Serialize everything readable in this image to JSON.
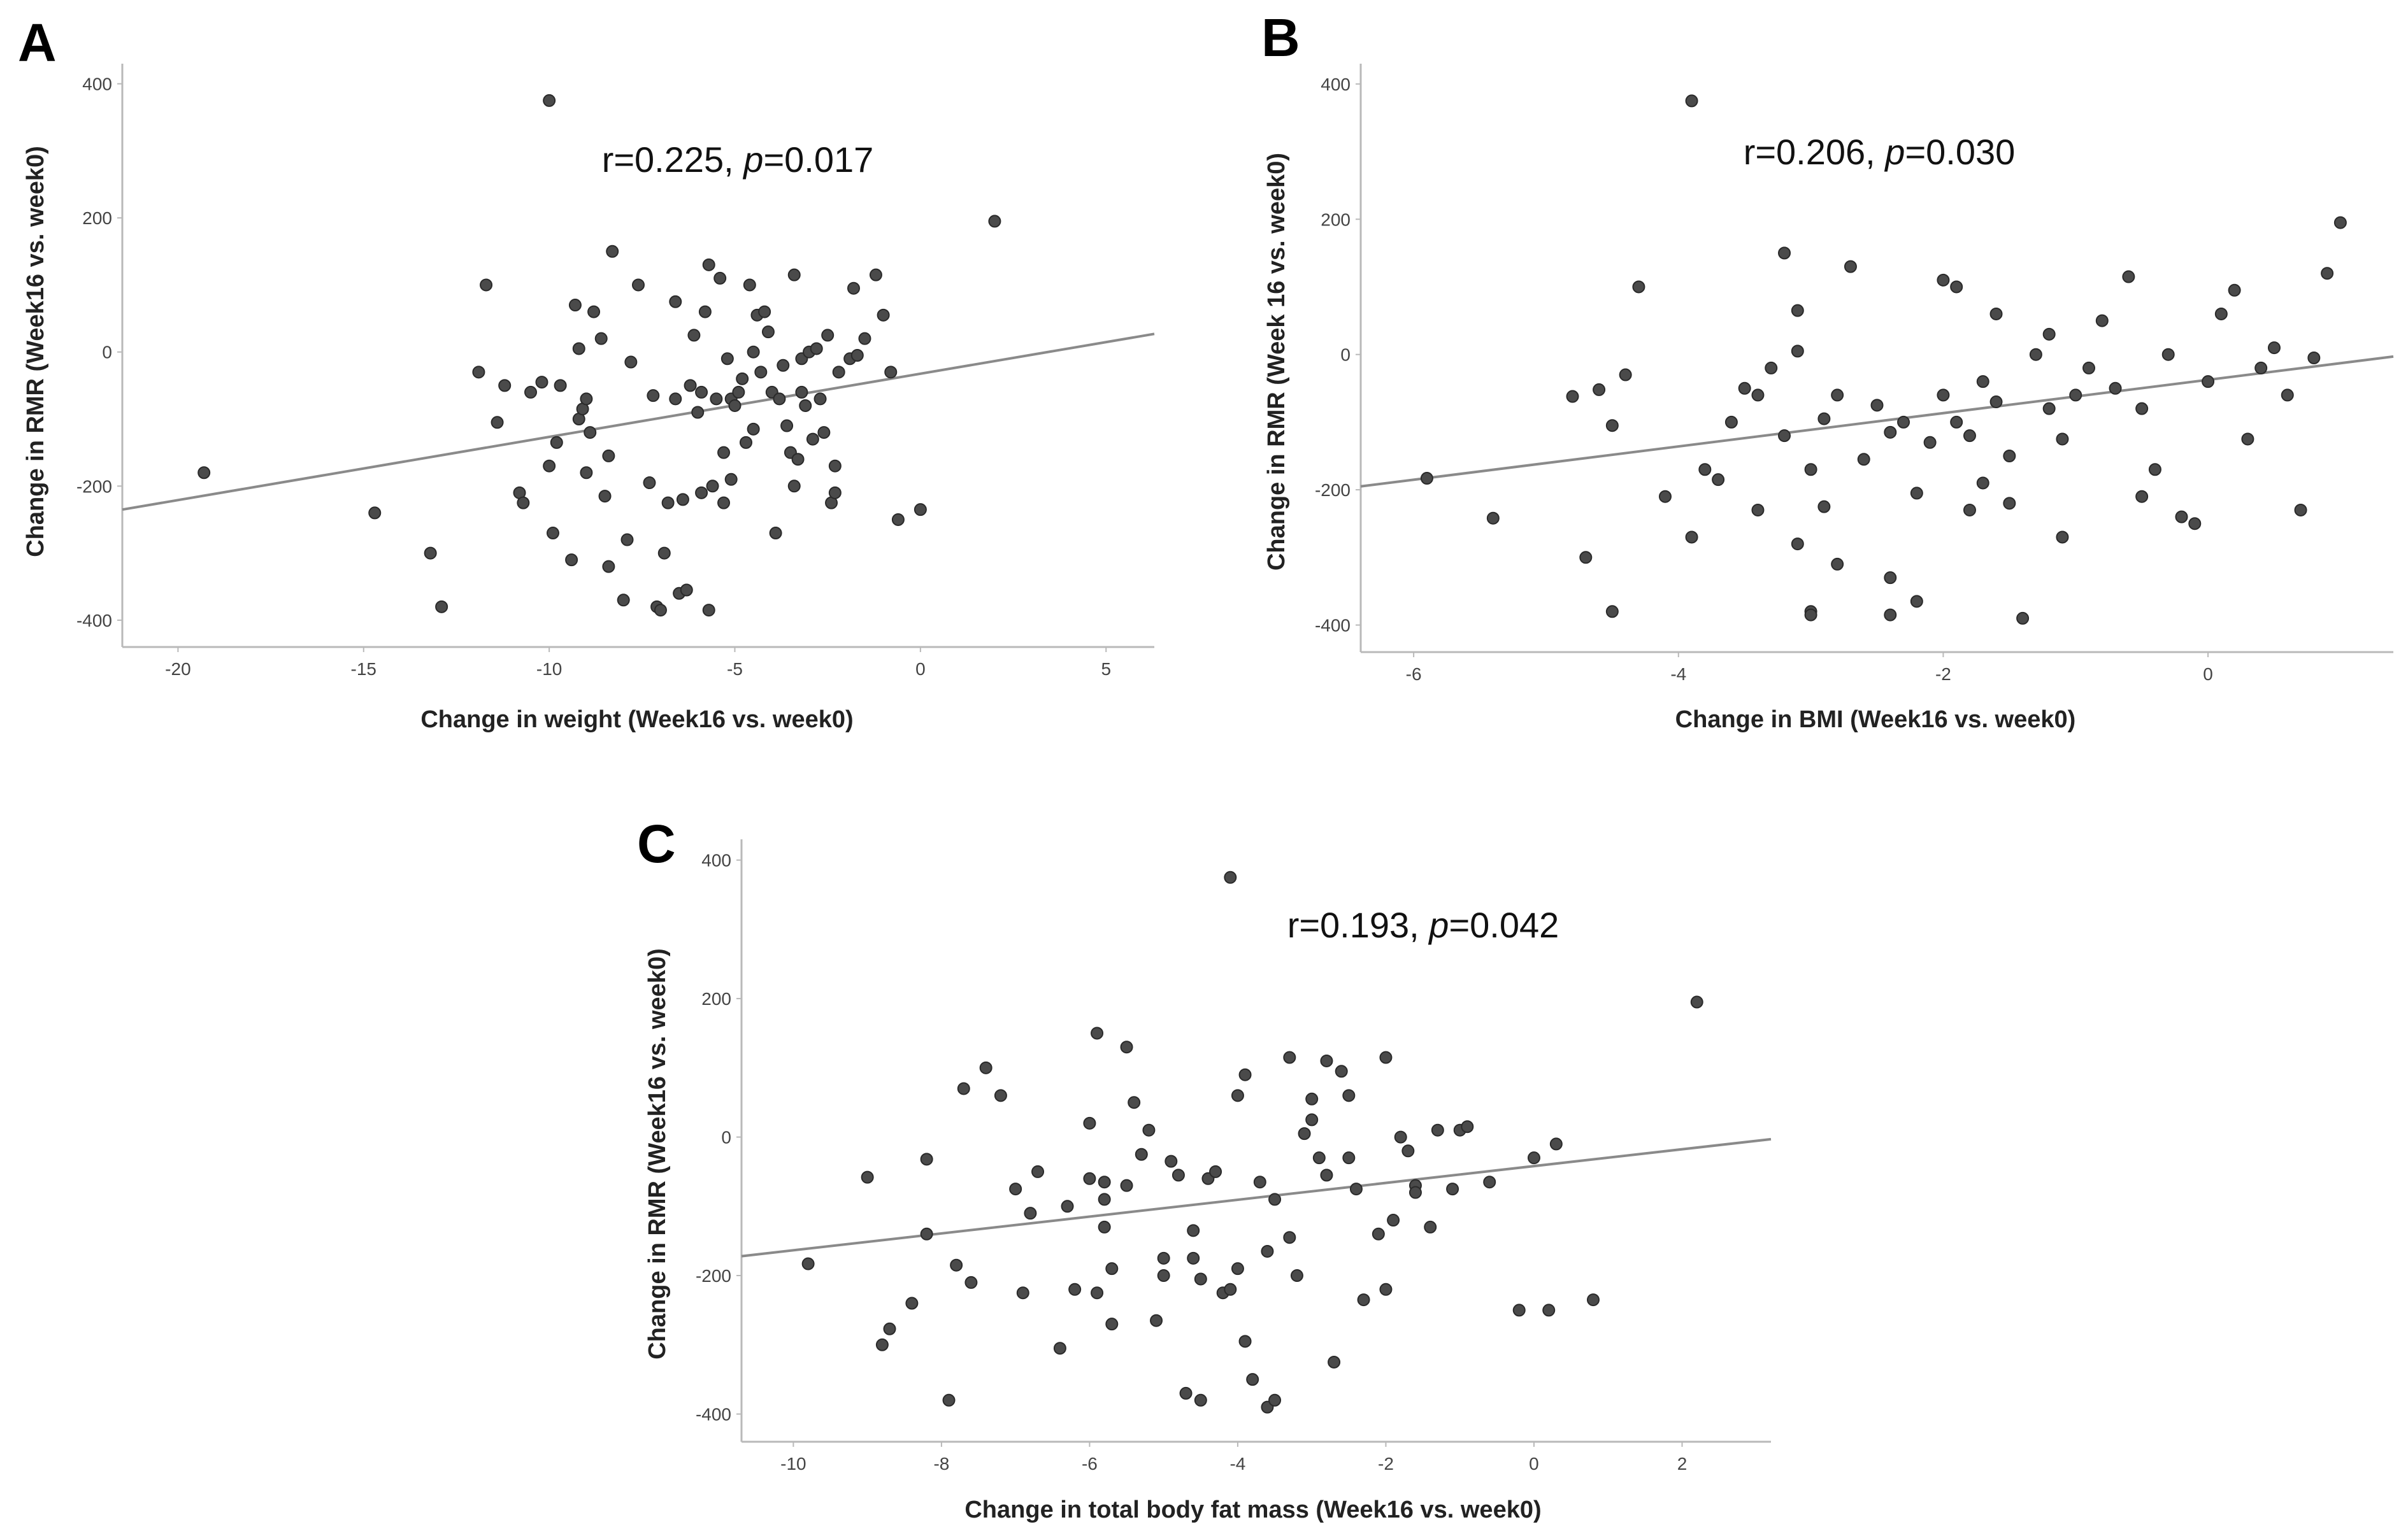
{
  "chart_data": [
    {
      "panel": "A",
      "type": "scatter",
      "xlabel": "Change in weight (Week16 vs. week0)",
      "ylabel": "Change in RMR (Week16 vs. week0)",
      "annotation": {
        "r": "r=0.225,",
        "p_label": "p",
        "p_value": "=0.017"
      },
      "xlim": [
        -21.5,
        6.3
      ],
      "ylim": [
        -440,
        430
      ],
      "xticks": [
        -20,
        -15,
        -10,
        -5,
        0,
        5
      ],
      "yticks": [
        -400,
        -200,
        0,
        200,
        400
      ],
      "fit_line": {
        "x": [
          -21.5,
          6.3
        ],
        "y": [
          -235,
          27
        ]
      },
      "points": [
        [
          -19.3,
          -180
        ],
        [
          -14.7,
          -240
        ],
        [
          -13.2,
          -300
        ],
        [
          -12.9,
          -380
        ],
        [
          -11.9,
          -30
        ],
        [
          -11.7,
          100
        ],
        [
          -11.4,
          -105
        ],
        [
          -11.2,
          -50
        ],
        [
          -10.8,
          -210
        ],
        [
          -10.7,
          -225
        ],
        [
          -10.5,
          -60
        ],
        [
          -10.2,
          -45
        ],
        [
          -10.0,
          375
        ],
        [
          -10.0,
          -170
        ],
        [
          -9.9,
          -270
        ],
        [
          -9.8,
          -135
        ],
        [
          -9.7,
          -50
        ],
        [
          -9.4,
          -310
        ],
        [
          -9.3,
          70
        ],
        [
          -9.2,
          -100
        ],
        [
          -9.2,
          5
        ],
        [
          -9.1,
          -85
        ],
        [
          -9.0,
          -70
        ],
        [
          -9.0,
          -180
        ],
        [
          -8.9,
          -120
        ],
        [
          -8.8,
          60
        ],
        [
          -8.6,
          20
        ],
        [
          -8.5,
          -215
        ],
        [
          -8.4,
          -155
        ],
        [
          -8.4,
          -320
        ],
        [
          -8.3,
          150
        ],
        [
          -8.0,
          -370
        ],
        [
          -7.9,
          -280
        ],
        [
          -7.8,
          -15
        ],
        [
          -7.6,
          100
        ],
        [
          -7.3,
          -195
        ],
        [
          -7.2,
          -65
        ],
        [
          -7.1,
          -380
        ],
        [
          -7.0,
          -385
        ],
        [
          -6.9,
          -300
        ],
        [
          -6.8,
          -225
        ],
        [
          -6.6,
          75
        ],
        [
          -6.6,
          -70
        ],
        [
          -6.5,
          -360
        ],
        [
          -6.4,
          -220
        ],
        [
          -6.3,
          -355
        ],
        [
          -6.2,
          -50
        ],
        [
          -6.1,
          25
        ],
        [
          -6.0,
          -90
        ],
        [
          -5.9,
          -210
        ],
        [
          -5.9,
          -60
        ],
        [
          -5.8,
          60
        ],
        [
          -5.7,
          -385
        ],
        [
          -5.7,
          130
        ],
        [
          -5.6,
          -200
        ],
        [
          -5.5,
          -70
        ],
        [
          -5.4,
          110
        ],
        [
          -5.3,
          -150
        ],
        [
          -5.3,
          -225
        ],
        [
          -5.2,
          -10
        ],
        [
          -5.1,
          -70
        ],
        [
          -5.1,
          -190
        ],
        [
          -5.0,
          -80
        ],
        [
          -4.9,
          -60
        ],
        [
          -4.8,
          -40
        ],
        [
          -4.7,
          -135
        ],
        [
          -4.6,
          100
        ],
        [
          -4.5,
          -115
        ],
        [
          -4.5,
          0
        ],
        [
          -4.4,
          55
        ],
        [
          -4.3,
          -30
        ],
        [
          -4.2,
          60
        ],
        [
          -4.1,
          30
        ],
        [
          -4.0,
          -60
        ],
        [
          -3.9,
          -270
        ],
        [
          -3.8,
          -70
        ],
        [
          -3.7,
          -20
        ],
        [
          -3.6,
          -110
        ],
        [
          -3.5,
          -150
        ],
        [
          -3.4,
          -200
        ],
        [
          -3.4,
          115
        ],
        [
          -3.3,
          -160
        ],
        [
          -3.2,
          -60
        ],
        [
          -3.2,
          -10
        ],
        [
          -3.1,
          -80
        ],
        [
          -3.0,
          0
        ],
        [
          -2.9,
          -130
        ],
        [
          -2.8,
          5
        ],
        [
          -2.7,
          -70
        ],
        [
          -2.6,
          -120
        ],
        [
          -2.5,
          25
        ],
        [
          -2.4,
          -225
        ],
        [
          -2.3,
          -210
        ],
        [
          -2.3,
          -170
        ],
        [
          -2.2,
          -30
        ],
        [
          -1.9,
          -10
        ],
        [
          -1.8,
          95
        ],
        [
          -1.7,
          -5
        ],
        [
          -1.5,
          20
        ],
        [
          -1.2,
          115
        ],
        [
          -1.0,
          55
        ],
        [
          -0.8,
          -30
        ],
        [
          -0.6,
          -250
        ],
        [
          0.0,
          -235
        ],
        [
          2.0,
          195
        ]
      ]
    },
    {
      "panel": "B",
      "type": "scatter",
      "xlabel": "Change in BMI (Week16 vs. week0)",
      "ylabel": "Change in RMR (Week 16 vs. week0)",
      "annotation": {
        "r": "r=0.206,",
        "p_label": "p",
        "p_value": "=0.030"
      },
      "xlim": [
        -6.4,
        1.4
      ],
      "ylim": [
        -440,
        430
      ],
      "xticks": [
        -6,
        -4,
        -2,
        0
      ],
      "yticks": [
        -400,
        -200,
        0,
        200,
        400
      ],
      "fit_line": {
        "x": [
          -6.4,
          1.4
        ],
        "y": [
          -195,
          -3
        ]
      },
      "points": [
        [
          -5.9,
          -183
        ],
        [
          -5.4,
          -242
        ],
        [
          -4.8,
          -62
        ],
        [
          -4.7,
          -300
        ],
        [
          -4.6,
          -52
        ],
        [
          -4.5,
          -380
        ],
        [
          -4.5,
          -105
        ],
        [
          -4.4,
          -30
        ],
        [
          -4.3,
          100
        ],
        [
          -4.1,
          -210
        ],
        [
          -3.9,
          375
        ],
        [
          -3.9,
          -270
        ],
        [
          -3.8,
          -170
        ],
        [
          -3.7,
          -185
        ],
        [
          -3.6,
          -100
        ],
        [
          -3.5,
          -50
        ],
        [
          -3.4,
          -60
        ],
        [
          -3.4,
          -230
        ],
        [
          -3.3,
          -20
        ],
        [
          -3.2,
          150
        ],
        [
          -3.2,
          -120
        ],
        [
          -3.1,
          5
        ],
        [
          -3.1,
          -280
        ],
        [
          -3.1,
          65
        ],
        [
          -3.0,
          -170
        ],
        [
          -3.0,
          -380
        ],
        [
          -3.0,
          -385
        ],
        [
          -2.9,
          -225
        ],
        [
          -2.9,
          -95
        ],
        [
          -2.8,
          -310
        ],
        [
          -2.8,
          -60
        ],
        [
          -2.7,
          130
        ],
        [
          -2.6,
          -155
        ],
        [
          -2.5,
          -75
        ],
        [
          -2.4,
          -385
        ],
        [
          -2.4,
          -330
        ],
        [
          -2.4,
          -115
        ],
        [
          -2.3,
          -100
        ],
        [
          -2.2,
          -205
        ],
        [
          -2.2,
          -365
        ],
        [
          -2.1,
          -130
        ],
        [
          -2.0,
          -60
        ],
        [
          -2.0,
          110
        ],
        [
          -1.9,
          -100
        ],
        [
          -1.9,
          100
        ],
        [
          -1.8,
          -120
        ],
        [
          -1.8,
          -230
        ],
        [
          -1.7,
          -40
        ],
        [
          -1.7,
          -190
        ],
        [
          -1.6,
          -70
        ],
        [
          -1.6,
          60
        ],
        [
          -1.5,
          -150
        ],
        [
          -1.5,
          -220
        ],
        [
          -1.4,
          -390
        ],
        [
          -1.3,
          0
        ],
        [
          -1.2,
          -80
        ],
        [
          -1.2,
          30
        ],
        [
          -1.1,
          -270
        ],
        [
          -1.1,
          -125
        ],
        [
          -1.0,
          -60
        ],
        [
          -0.9,
          -20
        ],
        [
          -0.8,
          50
        ],
        [
          -0.7,
          -50
        ],
        [
          -0.6,
          115
        ],
        [
          -0.5,
          -80
        ],
        [
          -0.5,
          -210
        ],
        [
          -0.4,
          -170
        ],
        [
          -0.3,
          0
        ],
        [
          -0.2,
          -240
        ],
        [
          -0.1,
          -250
        ],
        [
          0.0,
          -40
        ],
        [
          0.1,
          60
        ],
        [
          0.2,
          95
        ],
        [
          0.3,
          -125
        ],
        [
          0.4,
          -20
        ],
        [
          0.5,
          10
        ],
        [
          0.6,
          -60
        ],
        [
          0.7,
          -230
        ],
        [
          0.8,
          -5
        ],
        [
          0.9,
          120
        ],
        [
          1.0,
          195
        ]
      ]
    },
    {
      "panel": "C",
      "type": "scatter",
      "xlabel": "Change in total body fat mass (Week16 vs. week0)",
      "ylabel": "Change in RMR (Week16 vs. week0)",
      "annotation": {
        "r": "r=0.193,",
        "p_label": "p",
        "p_value": "=0.042"
      },
      "xlim": [
        -10.7,
        3.2
      ],
      "ylim": [
        -440,
        430
      ],
      "xticks": [
        -10,
        -8,
        -6,
        -4,
        -2,
        0,
        2
      ],
      "yticks": [
        -400,
        -200,
        0,
        200,
        400
      ],
      "fit_line": {
        "x": [
          -10.7,
          3.2
        ],
        "y": [
          -172,
          -3
        ]
      },
      "points": [
        [
          -9.8,
          -183
        ],
        [
          -9.0,
          -58
        ],
        [
          -8.8,
          -300
        ],
        [
          -8.7,
          -277
        ],
        [
          -8.4,
          -240
        ],
        [
          -8.2,
          -32
        ],
        [
          -8.2,
          -140
        ],
        [
          -7.9,
          -380
        ],
        [
          -7.8,
          -185
        ],
        [
          -7.7,
          70
        ],
        [
          -7.6,
          -210
        ],
        [
          -7.4,
          100
        ],
        [
          -7.2,
          60
        ],
        [
          -7.0,
          -75
        ],
        [
          -6.9,
          -225
        ],
        [
          -6.8,
          -110
        ],
        [
          -6.7,
          -50
        ],
        [
          -6.4,
          -305
        ],
        [
          -6.3,
          -100
        ],
        [
          -6.2,
          -220
        ],
        [
          -6.0,
          20
        ],
        [
          -6.0,
          -60
        ],
        [
          -5.9,
          150
        ],
        [
          -5.9,
          -225
        ],
        [
          -5.8,
          -130
        ],
        [
          -5.8,
          -90
        ],
        [
          -5.8,
          -65
        ],
        [
          -5.7,
          -190
        ],
        [
          -5.7,
          -270
        ],
        [
          -5.5,
          130
        ],
        [
          -5.5,
          -70
        ],
        [
          -5.4,
          50
        ],
        [
          -5.3,
          -25
        ],
        [
          -5.2,
          10
        ],
        [
          -5.1,
          -265
        ],
        [
          -5.0,
          -175
        ],
        [
          -5.0,
          -200
        ],
        [
          -4.9,
          -35
        ],
        [
          -4.8,
          -55
        ],
        [
          -4.7,
          -370
        ],
        [
          -4.6,
          -135
        ],
        [
          -4.6,
          -175
        ],
        [
          -4.5,
          -380
        ],
        [
          -4.5,
          -205
        ],
        [
          -4.4,
          -60
        ],
        [
          -4.3,
          -50
        ],
        [
          -4.2,
          -225
        ],
        [
          -4.1,
          -220
        ],
        [
          -4.1,
          375
        ],
        [
          -4.0,
          60
        ],
        [
          -4.0,
          -190
        ],
        [
          -3.9,
          90
        ],
        [
          -3.9,
          -295
        ],
        [
          -3.8,
          -350
        ],
        [
          -3.7,
          -65
        ],
        [
          -3.6,
          -390
        ],
        [
          -3.6,
          -165
        ],
        [
          -3.5,
          -380
        ],
        [
          -3.5,
          -90
        ],
        [
          -3.3,
          -145
        ],
        [
          -3.3,
          115
        ],
        [
          -3.2,
          -200
        ],
        [
          -3.1,
          5
        ],
        [
          -3.0,
          55
        ],
        [
          -3.0,
          25
        ],
        [
          -2.9,
          -30
        ],
        [
          -2.8,
          -55
        ],
        [
          -2.8,
          110
        ],
        [
          -2.7,
          -325
        ],
        [
          -2.6,
          95
        ],
        [
          -2.5,
          60
        ],
        [
          -2.5,
          -30
        ],
        [
          -2.4,
          -75
        ],
        [
          -2.3,
          -235
        ],
        [
          -2.1,
          -140
        ],
        [
          -2.0,
          115
        ],
        [
          -2.0,
          -220
        ],
        [
          -1.9,
          -120
        ],
        [
          -1.8,
          0
        ],
        [
          -1.7,
          -20
        ],
        [
          -1.6,
          -70
        ],
        [
          -1.6,
          -80
        ],
        [
          -1.4,
          -130
        ],
        [
          -1.3,
          10
        ],
        [
          -1.1,
          -75
        ],
        [
          -1.0,
          10
        ],
        [
          -0.9,
          15
        ],
        [
          -0.6,
          -65
        ],
        [
          -0.2,
          -250
        ],
        [
          0.0,
          -30
        ],
        [
          0.2,
          -250
        ],
        [
          0.3,
          -10
        ],
        [
          0.8,
          -235
        ],
        [
          2.2,
          195
        ]
      ]
    }
  ]
}
